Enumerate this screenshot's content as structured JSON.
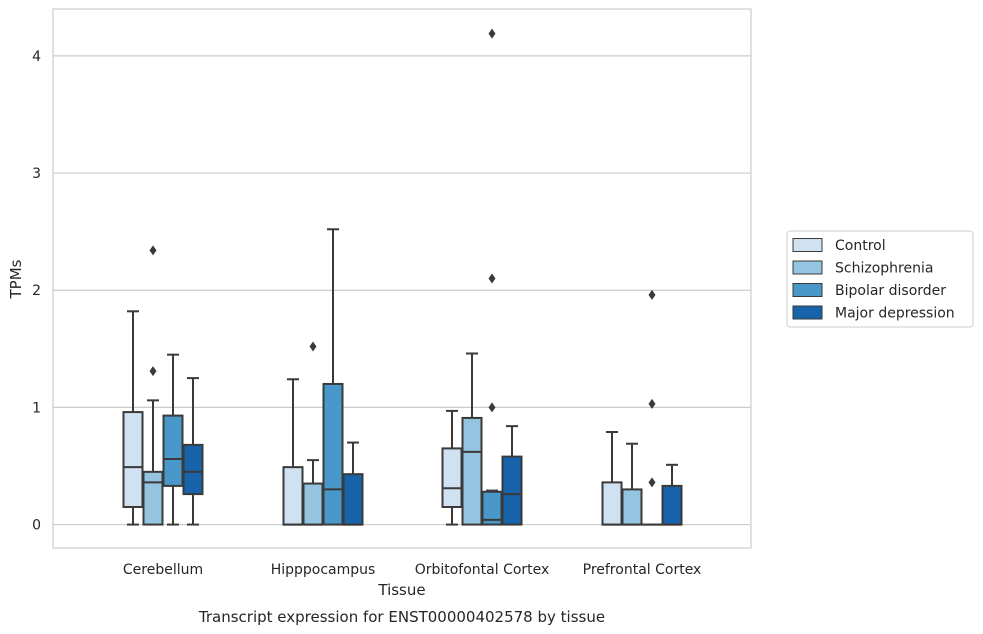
{
  "chart_data": {
    "type": "box",
    "title": "",
    "caption": "Transcript expression for ENST00000402578 by tissue",
    "xlabel": "Tissue",
    "ylabel": "TPMs",
    "ylim": [
      -0.2,
      4.4
    ],
    "yticks": [
      0,
      1,
      2,
      3,
      4
    ],
    "grid": "horizontal",
    "legend_position": "right",
    "categories": [
      "Cerebellum",
      "Hipppocampus",
      "Orbitofontal Cortex",
      "Prefrontal Cortex"
    ],
    "series": [
      {
        "name": "Control",
        "color": "#d0e1f2",
        "boxes": [
          {
            "whislo": 0.0,
            "q1": 0.15,
            "med": 0.49,
            "q3": 0.96,
            "whishi": 1.82,
            "fliers": []
          },
          {
            "whislo": 0.0,
            "q1": 0.0,
            "med": 0.0,
            "q3": 0.49,
            "whishi": 1.24,
            "fliers": []
          },
          {
            "whislo": 0.0,
            "q1": 0.15,
            "med": 0.31,
            "q3": 0.65,
            "whishi": 0.97,
            "fliers": []
          },
          {
            "whislo": 0.0,
            "q1": 0.0,
            "med": 0.0,
            "q3": 0.36,
            "whishi": 0.79,
            "fliers": []
          }
        ]
      },
      {
        "name": "Schizophrenia",
        "color": "#94c4df",
        "boxes": [
          {
            "whislo": 0.0,
            "q1": 0.0,
            "med": 0.36,
            "q3": 0.45,
            "whishi": 1.06,
            "fliers": [
              1.31,
              2.34
            ]
          },
          {
            "whislo": 0.0,
            "q1": 0.0,
            "med": 0.0,
            "q3": 0.35,
            "whishi": 0.55,
            "fliers": [
              1.52
            ]
          },
          {
            "whislo": 0.0,
            "q1": 0.0,
            "med": 0.62,
            "q3": 0.91,
            "whishi": 1.46,
            "fliers": []
          },
          {
            "whislo": 0.0,
            "q1": 0.0,
            "med": 0.0,
            "q3": 0.3,
            "whishi": 0.69,
            "fliers": []
          }
        ]
      },
      {
        "name": "Bipolar disorder",
        "color": "#4a98c9",
        "boxes": [
          {
            "whislo": 0.0,
            "q1": 0.33,
            "med": 0.56,
            "q3": 0.93,
            "whishi": 1.45,
            "fliers": []
          },
          {
            "whislo": 0.0,
            "q1": 0.0,
            "med": 0.3,
            "q3": 1.2,
            "whishi": 2.52,
            "fliers": []
          },
          {
            "whislo": 0.0,
            "q1": 0.0,
            "med": 0.04,
            "q3": 0.28,
            "whishi": 0.29,
            "fliers": [
              1.0,
              2.1,
              4.19
            ]
          },
          {
            "whislo": 0.0,
            "q1": 0.0,
            "med": 0.0,
            "q3": 0.0,
            "whishi": 0.0,
            "fliers": [
              0.36,
              1.03,
              1.96
            ]
          }
        ]
      },
      {
        "name": "Major depression",
        "color": "#1764ab",
        "boxes": [
          {
            "whislo": 0.0,
            "q1": 0.26,
            "med": 0.45,
            "q3": 0.68,
            "whishi": 1.25,
            "fliers": []
          },
          {
            "whislo": 0.0,
            "q1": 0.0,
            "med": 0.0,
            "q3": 0.43,
            "whishi": 0.7,
            "fliers": []
          },
          {
            "whislo": 0.0,
            "q1": 0.0,
            "med": 0.26,
            "q3": 0.58,
            "whishi": 0.84,
            "fliers": []
          },
          {
            "whislo": 0.0,
            "q1": 0.0,
            "med": 0.0,
            "q3": 0.33,
            "whishi": 0.51,
            "fliers": []
          }
        ]
      }
    ],
    "colors": {
      "grid": "#cccccc",
      "frame": "#cccccc",
      "box_edge": "#3a3a3a",
      "flier": "#3a3a3a"
    }
  }
}
